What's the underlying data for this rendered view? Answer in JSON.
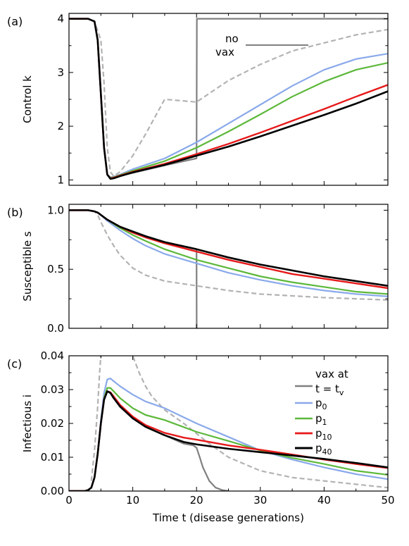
{
  "colors": {
    "vax": "#808080",
    "no_vax": "#b3b3b3",
    "p0": "#8aa9ea",
    "p1": "#5cb83a",
    "p10": "#e6191a",
    "p40": "#000000"
  },
  "chart_data": [
    {
      "type": "line",
      "panel_label": "(a)",
      "ylabel": "Control  k",
      "ylim": [
        0.9,
        4.1
      ],
      "yticks": [
        1,
        2,
        3,
        4
      ],
      "xlim": [
        0,
        50
      ],
      "annotation": {
        "line1": "no",
        "line2": "vax"
      },
      "series": [
        {
          "key": "no_vax",
          "style": "dashed",
          "x": [
            0,
            3,
            4,
            5,
            5.5,
            6,
            6.5,
            7,
            8,
            10,
            12,
            15,
            20,
            25,
            30,
            35,
            40,
            45,
            50
          ],
          "y": [
            4,
            4,
            3.95,
            3.6,
            2.8,
            1.6,
            1.15,
            1.07,
            1.15,
            1.45,
            1.85,
            2.5,
            2.45,
            2.85,
            3.15,
            3.4,
            3.55,
            3.7,
            3.8
          ]
        },
        {
          "key": "vax",
          "style": "solid",
          "x": [
            0,
            3,
            4,
            4.5,
            5,
            5.5,
            6,
            6.5,
            7,
            8,
            10,
            15,
            19.95,
            20,
            20.05,
            50
          ],
          "y": [
            4,
            4,
            3.95,
            3.6,
            2.6,
            1.6,
            1.1,
            1.04,
            1.05,
            1.08,
            1.13,
            1.27,
            1.4,
            1.4,
            4,
            4
          ]
        },
        {
          "key": "p0",
          "style": "solid",
          "x": [
            0,
            3,
            4,
            4.5,
            5,
            5.5,
            6,
            6.5,
            7,
            8,
            10,
            15,
            20,
            25,
            30,
            35,
            40,
            45,
            50
          ],
          "y": [
            4,
            4,
            3.95,
            3.6,
            2.6,
            1.6,
            1.1,
            1.05,
            1.06,
            1.1,
            1.2,
            1.4,
            1.7,
            2.05,
            2.4,
            2.75,
            3.05,
            3.25,
            3.35
          ]
        },
        {
          "key": "p1",
          "style": "solid",
          "x": [
            0,
            3,
            4,
            4.5,
            5,
            5.5,
            6,
            6.5,
            7,
            8,
            10,
            15,
            20,
            25,
            30,
            35,
            40,
            45,
            50
          ],
          "y": [
            4,
            4,
            3.95,
            3.6,
            2.6,
            1.6,
            1.1,
            1.04,
            1.05,
            1.09,
            1.17,
            1.35,
            1.6,
            1.9,
            2.22,
            2.55,
            2.83,
            3.05,
            3.18
          ]
        },
        {
          "key": "p10",
          "style": "solid",
          "x": [
            0,
            3,
            4,
            4.5,
            5,
            5.5,
            6,
            6.5,
            7,
            8,
            10,
            15,
            20,
            25,
            30,
            35,
            40,
            45,
            50
          ],
          "y": [
            4,
            4,
            3.95,
            3.6,
            2.6,
            1.6,
            1.1,
            1.03,
            1.04,
            1.08,
            1.15,
            1.3,
            1.48,
            1.67,
            1.88,
            2.1,
            2.32,
            2.55,
            2.77
          ]
        },
        {
          "key": "p40",
          "style": "solid",
          "x": [
            0,
            3,
            4,
            4.5,
            5,
            5.5,
            6,
            6.5,
            7,
            8,
            10,
            15,
            20,
            25,
            30,
            35,
            40,
            45,
            50
          ],
          "y": [
            4,
            4,
            3.95,
            3.6,
            2.6,
            1.6,
            1.1,
            1.02,
            1.03,
            1.07,
            1.14,
            1.28,
            1.45,
            1.62,
            1.81,
            2.01,
            2.21,
            2.42,
            2.65
          ]
        }
      ]
    },
    {
      "type": "line",
      "panel_label": "(b)",
      "ylabel": "Susceptible s",
      "ylim": [
        0,
        1.05
      ],
      "yticks": [
        0.0,
        0.5,
        1.0
      ],
      "ytick_labels": [
        "0.0",
        "0.5",
        "1.0"
      ],
      "xlim": [
        0,
        50
      ],
      "series": [
        {
          "key": "no_vax",
          "style": "dashed",
          "x": [
            0,
            3,
            4,
            4.5,
            5,
            6,
            7,
            8,
            10,
            12,
            15,
            20,
            25,
            30,
            40,
            50
          ],
          "y": [
            1,
            1,
            0.99,
            0.96,
            0.9,
            0.79,
            0.7,
            0.62,
            0.51,
            0.45,
            0.4,
            0.36,
            0.32,
            0.29,
            0.26,
            0.24
          ]
        },
        {
          "key": "vax",
          "style": "solid",
          "x": [
            0,
            3,
            4,
            4.5,
            5,
            6,
            7,
            8,
            10,
            12,
            15,
            19.95,
            20,
            20.02
          ],
          "y": [
            1,
            1,
            0.99,
            0.98,
            0.96,
            0.92,
            0.89,
            0.86,
            0.82,
            0.78,
            0.73,
            0.67,
            0.67,
            0
          ]
        },
        {
          "key": "p0",
          "style": "solid",
          "x": [
            0,
            3,
            4,
            4.5,
            5,
            6,
            8,
            10,
            12,
            15,
            20,
            25,
            30,
            35,
            40,
            45,
            50
          ],
          "y": [
            1,
            1,
            0.99,
            0.98,
            0.96,
            0.91,
            0.83,
            0.76,
            0.7,
            0.63,
            0.55,
            0.47,
            0.41,
            0.36,
            0.32,
            0.29,
            0.27
          ]
        },
        {
          "key": "p1",
          "style": "solid",
          "x": [
            0,
            3,
            4,
            4.5,
            5,
            6,
            8,
            10,
            12,
            15,
            20,
            25,
            30,
            35,
            40,
            45,
            50
          ],
          "y": [
            1,
            1,
            0.99,
            0.98,
            0.96,
            0.92,
            0.85,
            0.79,
            0.74,
            0.67,
            0.58,
            0.51,
            0.44,
            0.39,
            0.35,
            0.31,
            0.29
          ]
        },
        {
          "key": "p10",
          "style": "solid",
          "x": [
            0,
            3,
            4,
            4.5,
            5,
            6,
            8,
            10,
            12,
            15,
            20,
            25,
            30,
            35,
            40,
            45,
            50
          ],
          "y": [
            1,
            1,
            0.99,
            0.98,
            0.96,
            0.92,
            0.86,
            0.81,
            0.77,
            0.72,
            0.65,
            0.58,
            0.52,
            0.46,
            0.42,
            0.38,
            0.34
          ]
        },
        {
          "key": "p40",
          "style": "solid",
          "x": [
            0,
            3,
            4,
            4.5,
            5,
            6,
            8,
            10,
            12,
            15,
            20,
            25,
            30,
            35,
            40,
            45,
            50
          ],
          "y": [
            1,
            1,
            0.99,
            0.98,
            0.96,
            0.92,
            0.86,
            0.82,
            0.78,
            0.73,
            0.67,
            0.6,
            0.54,
            0.49,
            0.44,
            0.4,
            0.36
          ]
        }
      ]
    },
    {
      "type": "line",
      "panel_label": "(c)",
      "ylabel": "Infectious i",
      "xlabel": "Time t (disease generations)",
      "ylim": [
        0,
        0.04
      ],
      "yticks": [
        0,
        0.01,
        0.02,
        0.03,
        0.04
      ],
      "ytick_labels": [
        "0.00",
        "0.01",
        "0.02",
        "0.03",
        "0.04"
      ],
      "xlim": [
        0,
        50
      ],
      "xticks": [
        0,
        10,
        20,
        30,
        40,
        50
      ],
      "legend": {
        "placement": "right",
        "entries": [
          {
            "key": "vax",
            "line1": "vax at",
            "line2": "t = t",
            "line2_sub": "v"
          },
          {
            "key": "p0",
            "label": "p",
            "sub": "0"
          },
          {
            "key": "p1",
            "label": "p",
            "sub": "1"
          },
          {
            "key": "p10",
            "label": "p",
            "sub": "10"
          },
          {
            "key": "p40",
            "label": "p",
            "sub": "40"
          }
        ]
      },
      "series": [
        {
          "key": "no_vax",
          "style": "dashed",
          "x": [
            3.5,
            4,
            4.5,
            4.8,
            5,
            5.2
          ],
          "y": [
            0.003,
            0.012,
            0.025,
            0.035,
            0.04,
            0.042
          ]
        },
        {
          "key": "no_vax",
          "style": "dashed",
          "x": [
            9.8,
            10,
            11,
            12,
            13,
            15,
            18,
            20,
            22,
            25,
            30,
            35,
            40,
            45,
            50
          ],
          "y": [
            0.042,
            0.04,
            0.035,
            0.031,
            0.028,
            0.024,
            0.02,
            0.017,
            0.014,
            0.01,
            0.006,
            0.004,
            0.003,
            0.002,
            0.001
          ]
        },
        {
          "key": "vax",
          "style": "solid",
          "x": [
            0,
            2.5,
            3,
            3.5,
            4,
            4.5,
            5,
            5.5,
            6,
            6.5,
            7,
            8,
            10,
            12,
            15,
            18,
            19.5,
            20,
            20.5,
            21,
            22,
            23,
            24,
            25
          ],
          "y": [
            0,
            0,
            0.0003,
            0.001,
            0.004,
            0.011,
            0.02,
            0.027,
            0.0295,
            0.029,
            0.0275,
            0.025,
            0.0215,
            0.019,
            0.0165,
            0.014,
            0.0135,
            0.0128,
            0.01,
            0.007,
            0.003,
            0.001,
            0.0003,
            0
          ]
        },
        {
          "key": "p0",
          "style": "solid",
          "x": [
            0,
            2.5,
            3,
            3.5,
            4,
            4.5,
            5,
            5.5,
            6,
            6.5,
            7,
            8,
            10,
            12,
            15,
            20,
            25,
            30,
            35,
            40,
            45,
            50
          ],
          "y": [
            0,
            0,
            0.0003,
            0.001,
            0.004,
            0.011,
            0.021,
            0.029,
            0.033,
            0.0333,
            0.0325,
            0.031,
            0.0285,
            0.0265,
            0.0245,
            0.02,
            0.016,
            0.012,
            0.0093,
            0.007,
            0.005,
            0.0035
          ]
        },
        {
          "key": "p1",
          "style": "solid",
          "x": [
            0,
            2.5,
            3,
            3.5,
            4,
            4.5,
            5,
            5.5,
            6,
            6.5,
            7,
            8,
            10,
            12,
            15,
            20,
            25,
            30,
            35,
            40,
            45,
            50
          ],
          "y": [
            0,
            0,
            0.0003,
            0.001,
            0.004,
            0.011,
            0.02,
            0.0275,
            0.0305,
            0.0305,
            0.0295,
            0.0275,
            0.0245,
            0.0225,
            0.021,
            0.0175,
            0.0148,
            0.012,
            0.0098,
            0.008,
            0.006,
            0.0048
          ]
        },
        {
          "key": "p10",
          "style": "solid",
          "x": [
            0,
            2.5,
            3,
            3.5,
            4,
            4.5,
            5,
            5.5,
            6,
            6.5,
            7,
            8,
            10,
            12,
            15,
            18,
            20,
            25,
            30,
            35,
            40,
            45,
            50
          ],
          "y": [
            0,
            0,
            0.0003,
            0.001,
            0.004,
            0.011,
            0.02,
            0.0272,
            0.0295,
            0.0292,
            0.028,
            0.0255,
            0.022,
            0.0195,
            0.0172,
            0.0158,
            0.0152,
            0.0135,
            0.0122,
            0.0108,
            0.0093,
            0.008,
            0.0068
          ]
        },
        {
          "key": "p40",
          "style": "solid",
          "x": [
            0,
            2.5,
            3,
            3.5,
            4,
            4.5,
            5,
            5.5,
            6,
            6.5,
            7,
            8,
            10,
            12,
            15,
            18,
            20,
            25,
            30,
            35,
            40,
            45,
            50
          ],
          "y": [
            0,
            0,
            0.0003,
            0.001,
            0.004,
            0.011,
            0.02,
            0.027,
            0.0295,
            0.029,
            0.0275,
            0.025,
            0.0215,
            0.019,
            0.0165,
            0.0145,
            0.0138,
            0.0125,
            0.0115,
            0.0105,
            0.0095,
            0.0083,
            0.007
          ]
        }
      ]
    }
  ]
}
